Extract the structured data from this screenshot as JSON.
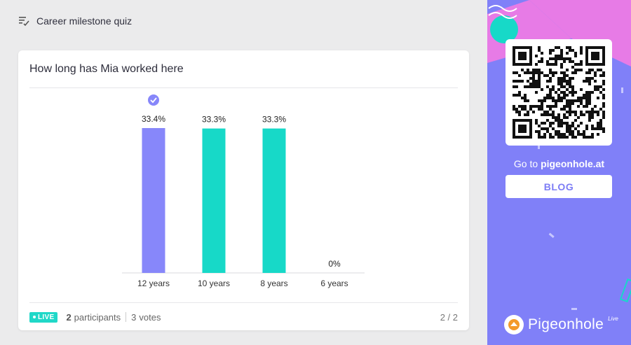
{
  "header": {
    "title": "Career milestone quiz",
    "icon": "poll-list-icon"
  },
  "question": "How long has Mia worked here",
  "chart_data": {
    "type": "bar",
    "categories": [
      "12 years",
      "10 years",
      "8 years",
      "6 years"
    ],
    "values": [
      33.4,
      33.3,
      33.3,
      0
    ],
    "labels": [
      "33.4%",
      "33.3%",
      "33.3%",
      "0%"
    ],
    "correct_index": 0,
    "ylim": [
      0,
      33.4
    ],
    "colors": {
      "correct": "#8787fa",
      "other": "#17d9c8"
    }
  },
  "footer": {
    "live_label": "LIVE",
    "participants_count": "2",
    "participants_label": "participants",
    "votes_count": "3",
    "votes_label": "votes",
    "pager": "2 / 2"
  },
  "sidebar": {
    "goto_prefix": "Go to ",
    "goto_site": "pigeonhole.at",
    "blog_label": "BLOG",
    "brand_name": "Pigeonhole",
    "brand_sup": "Live",
    "bg_color": "#8080f8",
    "accent_pink": "#e77be6",
    "accent_teal": "#17d9c8"
  }
}
